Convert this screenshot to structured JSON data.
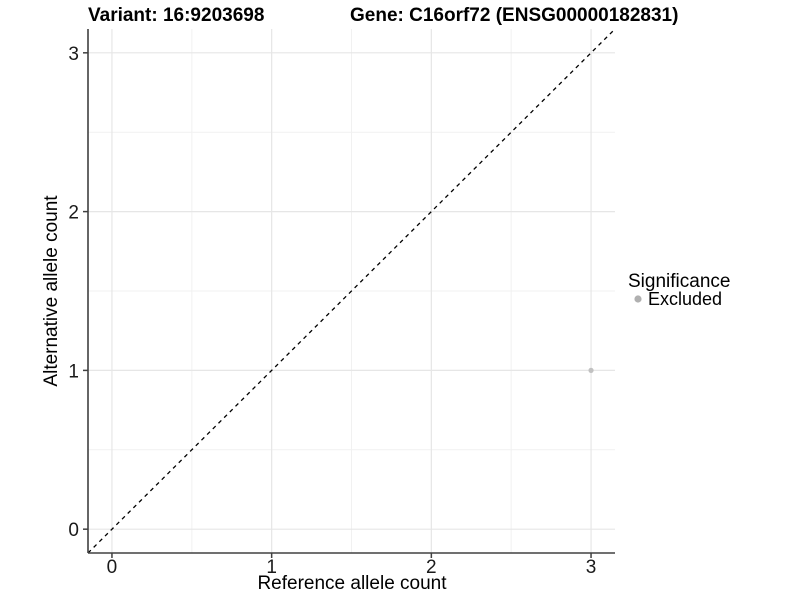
{
  "titles": {
    "variant": "Variant: 16:9203698",
    "gene": "Gene: C16orf72 (ENSG00000182831)"
  },
  "axes": {
    "x": {
      "label": "Reference allele count",
      "tick_values": [
        0,
        1,
        2,
        3
      ],
      "tick_labels": [
        "0",
        "1",
        "2",
        "3"
      ],
      "minor_tick_values": [
        0.5,
        1.5,
        2.5
      ]
    },
    "y": {
      "label": "Alternative allele count",
      "tick_values": [
        0,
        1,
        2,
        3
      ],
      "tick_labels": [
        "0",
        "1",
        "2",
        "3"
      ],
      "minor_tick_values": [
        0.5,
        1.5,
        2.5
      ]
    }
  },
  "legend": {
    "title": "Significance",
    "items": [
      {
        "label": "Excluded",
        "color": "#b0b0b0"
      }
    ]
  },
  "chart_data": {
    "type": "scatter",
    "title": "Variant: 16:9203698 | Gene: C16orf72 (ENSG00000182831)",
    "xlabel": "Reference allele count",
    "ylabel": "Alternative allele count",
    "xlim": [
      -0.15,
      3.15
    ],
    "ylim": [
      -0.15,
      3.15
    ],
    "grid": "major+minor",
    "legend_position": "right",
    "series": [
      {
        "name": "Excluded",
        "color": "#c1c1c1",
        "points": [
          {
            "x": 3,
            "y": 1
          }
        ]
      }
    ],
    "reference_line": {
      "kind": "identity",
      "style": "dashed",
      "equation": "y = x"
    }
  },
  "colors": {
    "background": "#ffffff",
    "grid_major": "#e6e6e6",
    "grid_minor": "#f1f1f1",
    "axis_line": "#404040",
    "tick_mark": "#404040",
    "dashed_line": "#000000",
    "point": "#c1c1c1",
    "legend_point": "#b0b0b0"
  }
}
